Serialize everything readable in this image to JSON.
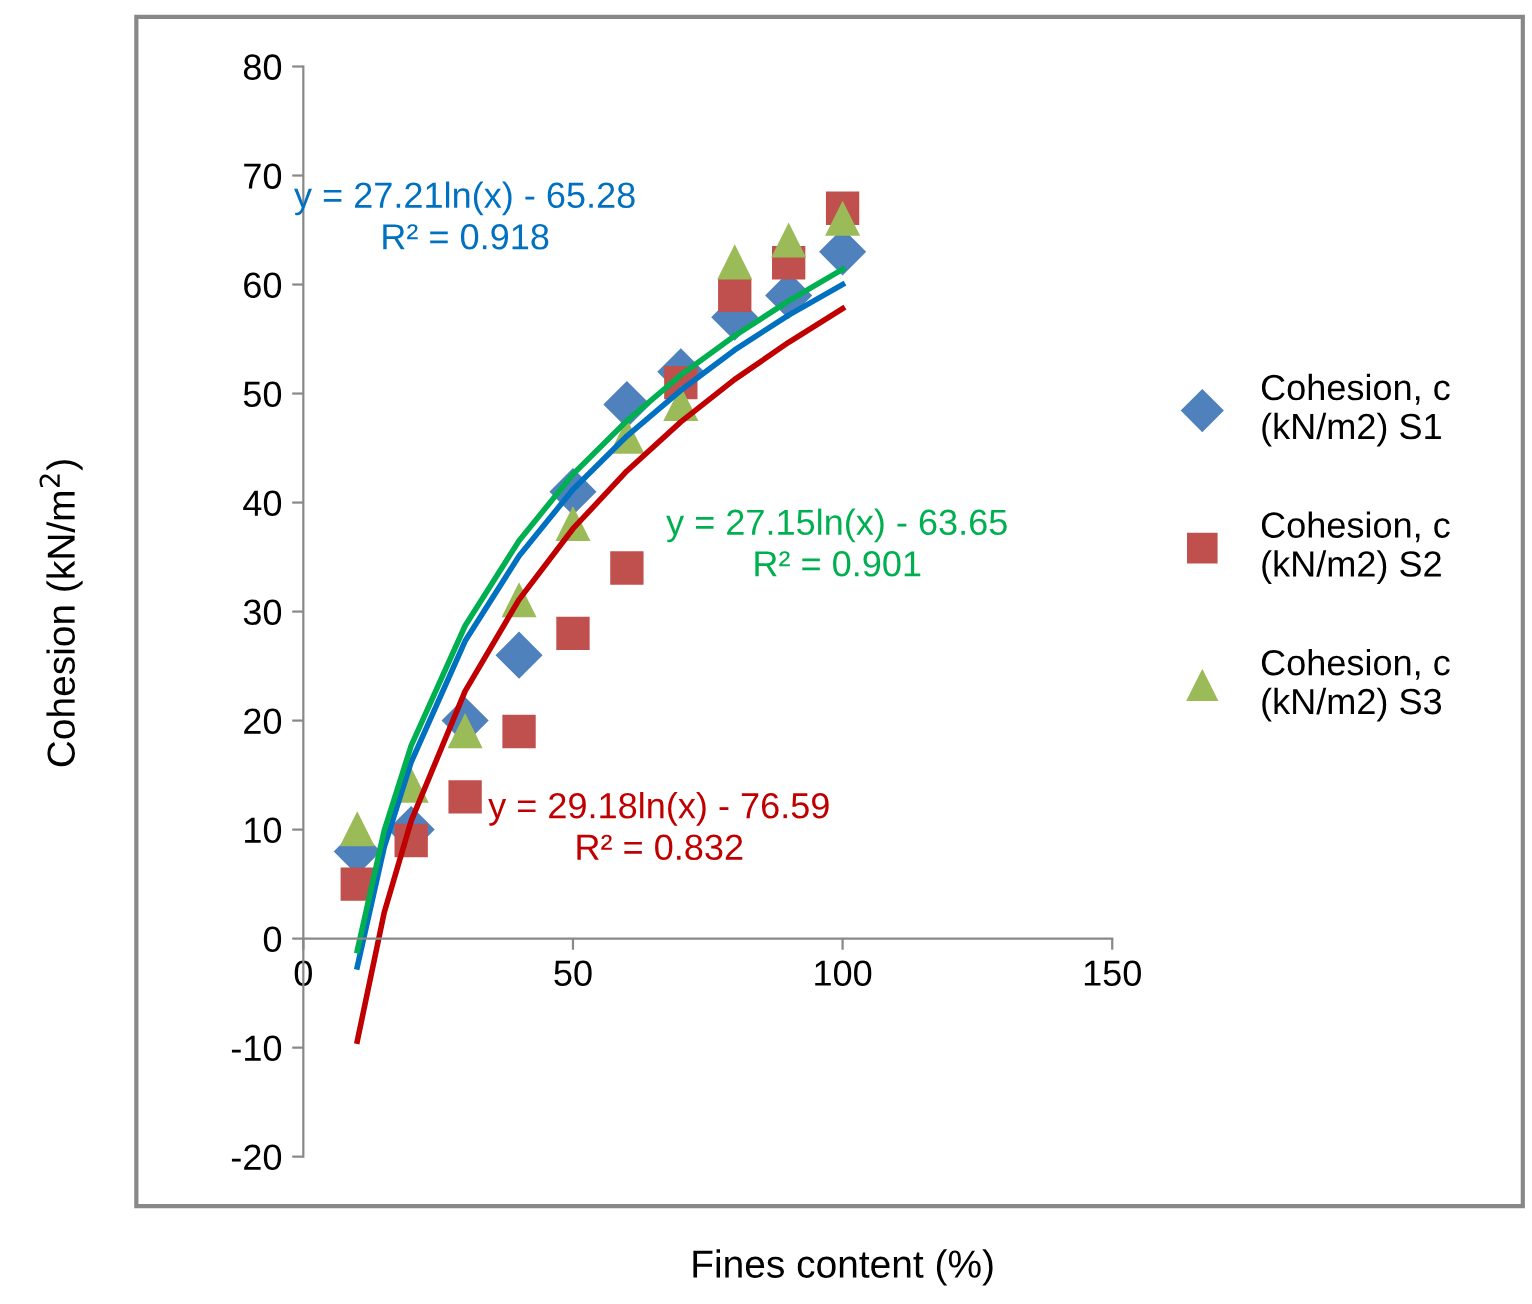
{
  "chart_data": {
    "type": "scatter",
    "xlabel": "Fines content (%)",
    "ylabel": "Cohesion (kN/m$^{2}$)",
    "x": [
      10,
      20,
      30,
      40,
      50,
      60,
      70,
      80,
      90,
      100
    ],
    "series": [
      {
        "name": "Cohesion, c (kN/m2) S1",
        "color": "#4f81bd",
        "marker": "diamond",
        "values": [
          8,
          10,
          20,
          26,
          41,
          49,
          52,
          57,
          59,
          63
        ]
      },
      {
        "name": "Cohesion, c (kN/m2) S2",
        "color": "#c0504d",
        "marker": "square",
        "values": [
          5,
          9,
          13,
          19,
          28,
          34,
          51,
          59,
          62,
          67
        ]
      },
      {
        "name": "Cohesion, c (kN/m2) S3",
        "color": "#9bbb59",
        "marker": "triangle",
        "values": [
          10,
          14,
          19,
          31,
          38,
          46,
          49,
          62,
          64,
          66
        ]
      },
      {
        "type": "line",
        "color": "#0070c0",
        "x": [
          10,
          15,
          20,
          30,
          40,
          50,
          60,
          70,
          80,
          90,
          100
        ],
        "values": [
          -2.6,
          8.4,
          16.2,
          27.3,
          35.1,
          41.2,
          46.1,
          50.3,
          54.0,
          57.2,
          60.0
        ]
      },
      {
        "type": "line",
        "color": "#c00000",
        "x": [
          10,
          15,
          20,
          30,
          40,
          50,
          60,
          70,
          80,
          90,
          100
        ],
        "values": [
          -9.4,
          2.4,
          10.8,
          22.7,
          31.1,
          37.6,
          42.9,
          47.4,
          51.3,
          54.7,
          57.8
        ]
      },
      {
        "type": "line",
        "color": "#00b050",
        "x": [
          10,
          15,
          20,
          30,
          40,
          50,
          60,
          70,
          80,
          90,
          100
        ],
        "values": [
          -1.1,
          9.9,
          17.7,
          28.7,
          36.5,
          42.6,
          47.5,
          51.7,
          55.3,
          58.5,
          61.4
        ]
      }
    ],
    "annotations": [
      "y = 27.21ln(x) - 65.28\nR² = 0.918",
      "y = 29.18ln(x) - 76.59\nR² = 0.832",
      "y = 27.15ln(x) - 63.65\nR² = 0.901"
    ],
    "xlim": [
      0,
      150
    ],
    "xticks": [
      0,
      50,
      100,
      150
    ],
    "ylim": [
      -20,
      80
    ],
    "yticks": [
      -20,
      -10,
      0,
      10,
      20,
      30,
      40,
      50,
      60,
      70,
      80
    ],
    "grid": false,
    "legend": "right"
  }
}
